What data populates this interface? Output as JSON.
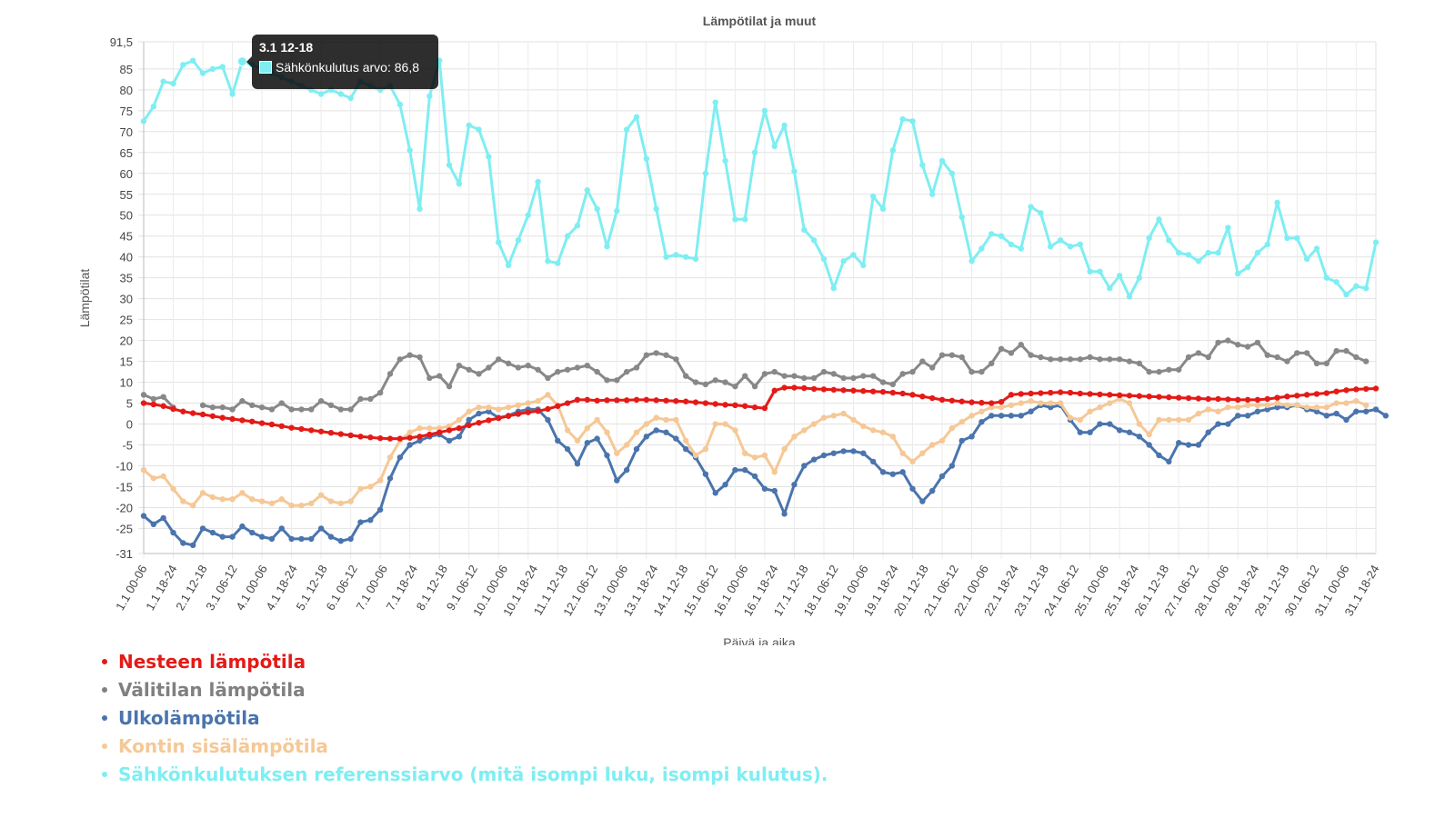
{
  "chart_data": {
    "type": "line",
    "title": "Lämpötilat ja muut",
    "xlabel": "Päivä ja aika",
    "ylabel": "Lämpötilat",
    "ylim": [
      -31,
      91.5
    ],
    "y_ticks": [
      "91,5",
      "85",
      "80",
      "75",
      "70",
      "65",
      "60",
      "55",
      "50",
      "45",
      "40",
      "35",
      "30",
      "25",
      "20",
      "15",
      "10",
      "5",
      "0",
      "-5",
      "-10",
      "-15",
      "-20",
      "-25",
      "-31"
    ],
    "y_tick_values": [
      91.5,
      85,
      80,
      75,
      70,
      65,
      60,
      55,
      50,
      45,
      40,
      35,
      30,
      25,
      20,
      15,
      10,
      5,
      0,
      -5,
      -10,
      -15,
      -20,
      -25,
      -31
    ],
    "grid": true,
    "legend_position": "bottom-left",
    "x_tick_labels": [
      "1.1 00-06",
      "1.1 18-24",
      "2.1 12-18",
      "3.1 06-12",
      "4.1 00-06",
      "4.1 18-24",
      "5.1 12-18",
      "6.1 06-12",
      "7.1 00-06",
      "7.1 18-24",
      "8.1 12-18",
      "9.1 06-12",
      "10.1 00-06",
      "10.1 18-24",
      "11.1 12-18",
      "12.1 06-12",
      "13.1 00-06",
      "13.1 18-24",
      "14.1 12-18",
      "15.1 06-12",
      "16.1 00-06",
      "16.1 18-24",
      "17.1 12-18",
      "18.1 06-12",
      "19.1 00-06",
      "19.1 18-24",
      "20.1 12-18",
      "21.1 06-12",
      "22.1 00-06",
      "22.1 18-24",
      "23.1 12-18",
      "24.1 06-12",
      "25.1 00-06",
      "25.1 18-24",
      "26.1 12-18",
      "27.1 06-12",
      "28.1 00-06",
      "28.1 18-24",
      "29.1 12-18",
      "30.1 06-12",
      "31.1 00-06",
      "31.1 18-24"
    ],
    "series": [
      {
        "name": "Sähkönkulutuksen referenssiarvo (mitä isompi luku, isompi kulutus).",
        "color": "#7eeef2",
        "values": [
          72.5,
          76,
          82,
          81.5,
          86,
          87,
          84,
          85,
          85.5,
          79,
          86.8,
          86,
          85,
          84,
          83,
          82,
          81,
          80,
          79,
          80,
          79,
          78,
          82,
          81,
          80,
          81,
          76.5,
          65.5,
          51.5,
          78.5,
          87,
          62,
          57.5,
          71.5,
          70.5,
          64,
          43.5,
          38,
          44,
          50,
          58,
          39,
          38.5,
          45,
          47.5,
          56,
          51.5,
          42.5,
          51,
          70.5,
          73.5,
          63.5,
          51.5,
          40,
          40.5,
          40,
          39.5,
          60,
          77,
          63,
          49,
          49,
          65,
          75,
          66.5,
          71.5,
          60.5,
          46.5,
          44,
          39.5,
          32.5,
          39,
          40.5,
          38,
          54.5,
          51.5,
          65.5,
          73,
          72.5,
          62,
          55,
          63,
          60,
          49.5,
          39,
          42,
          45.5,
          45,
          43,
          42,
          52,
          50.5,
          42.5,
          44,
          42.5,
          43,
          36.5,
          36.5,
          32.5,
          35.5,
          30.5,
          35,
          44.5,
          49,
          44,
          41,
          40.5,
          39,
          41,
          41,
          47,
          36,
          37.5,
          41,
          43,
          53,
          44.5,
          44.5,
          39.5,
          42,
          35,
          34,
          31,
          33,
          32.5,
          43.5
        ]
      },
      {
        "name": "Välitilan lämpötila",
        "color": "#888888",
        "values": [
          7,
          6,
          6.5,
          4,
          null,
          null,
          4.5,
          4,
          4,
          3.5,
          5.5,
          4.5,
          4,
          3.5,
          5,
          3.5,
          3.5,
          3.5,
          5.5,
          4.5,
          3.5,
          3.5,
          6,
          6,
          7.5,
          12,
          15.5,
          16.5,
          16,
          11,
          11.5,
          9,
          14,
          13,
          12,
          13.5,
          15.5,
          14.5,
          13.5,
          14,
          13,
          11,
          12.5,
          13,
          13.5,
          14,
          12.5,
          10.5,
          10.5,
          12.5,
          13.5,
          16.5,
          17,
          16.5,
          15.5,
          11.5,
          10,
          9.5,
          10.5,
          10,
          9,
          11.5,
          9,
          12,
          12.5,
          11.5,
          11.5,
          11,
          11,
          12.5,
          12,
          11,
          11,
          11.5,
          11.5,
          10,
          9.5,
          12,
          12.5,
          15,
          13.5,
          16.5,
          16.5,
          16,
          12.5,
          12.5,
          14.5,
          18,
          17,
          19,
          16.5,
          16,
          15.5,
          15.5,
          15.5,
          15.5,
          16,
          15.5,
          15.5,
          15.5,
          15,
          14.5,
          12.5,
          12.5,
          13,
          13,
          16,
          17,
          16,
          19.5,
          20,
          19,
          18.5,
          19.5,
          16.5,
          16,
          15,
          17,
          17,
          14.5,
          14.5,
          17.5,
          17.5,
          16,
          15
        ]
      },
      {
        "name": "Ulkolämpötila",
        "color": "#4a74ad",
        "values": [
          -22,
          -24,
          -22.5,
          -26,
          -28.5,
          -29,
          -25,
          -26,
          -27,
          -27,
          -24.5,
          -26,
          -27,
          -27.5,
          -25,
          -27.5,
          -27.5,
          -27.5,
          -25,
          -27,
          -28,
          -27.5,
          -23.5,
          -23,
          -20.5,
          -13,
          -8,
          -5,
          -4,
          -3,
          -2.5,
          -4,
          -3,
          1,
          2.5,
          3,
          1.5,
          2,
          3,
          3.5,
          3.5,
          1,
          -4,
          -6,
          -9.5,
          -4.5,
          -3.5,
          -7.5,
          -13.5,
          -11,
          -6,
          -3,
          -1.5,
          -2,
          -3.5,
          -6,
          -8,
          -12,
          -16.5,
          -14.5,
          -11,
          -11,
          -12.5,
          -15.5,
          -16,
          -21.5,
          -14.5,
          -10,
          -8.5,
          -7.5,
          -7,
          -6.5,
          -6.5,
          -7,
          -9,
          -11.5,
          -12,
          -11.5,
          -15.5,
          -18.5,
          -16,
          -12.5,
          -10,
          -4,
          -3,
          0.5,
          2,
          2,
          2,
          2,
          3,
          4.5,
          4,
          4.5,
          1,
          -2,
          -2,
          0,
          0,
          -1.5,
          -2,
          -3,
          -5,
          -7.5,
          -9,
          -4.5,
          -5,
          -5,
          -2,
          0,
          0,
          2,
          2,
          3,
          3.5,
          4,
          4,
          4.5,
          3.5,
          3,
          2,
          2.5,
          1,
          3,
          3,
          3.5,
          2
        ]
      },
      {
        "name": "Kontin sisälämpötila",
        "color": "#f5c896",
        "values": [
          -11,
          -13,
          -12.5,
          -15.5,
          -18.5,
          -19.5,
          -16.5,
          -17.5,
          -18,
          -18,
          -16.5,
          -18,
          -18.5,
          -19,
          -18,
          -19.5,
          -19.5,
          -19,
          -17,
          -18.5,
          -19,
          -18.5,
          -15.5,
          -15,
          -13.5,
          -8,
          -4,
          -2,
          -1,
          -1,
          -1,
          -0.5,
          1,
          3,
          4,
          4,
          3.5,
          4,
          4.5,
          5,
          5.5,
          7,
          4.5,
          -1.5,
          -4,
          -1,
          1,
          -2,
          -7,
          -5,
          -2,
          0,
          1.5,
          1,
          1,
          -4,
          -7.5,
          -6,
          0,
          0,
          -1.5,
          -7,
          -8,
          -7.5,
          -11.5,
          -6,
          -3,
          -1.5,
          0,
          1.5,
          2,
          2.5,
          1,
          -0.5,
          -1.5,
          -2,
          -3,
          -7,
          -9,
          -7,
          -5,
          -4,
          -1,
          0.5,
          2,
          3,
          4,
          4,
          4.5,
          5,
          5.5,
          5,
          5,
          5,
          1.5,
          1,
          3,
          4,
          5,
          6,
          5,
          0,
          -2.5,
          1,
          1,
          1,
          1,
          2.5,
          3.5,
          3,
          4,
          4,
          4.5,
          4.5,
          4.5,
          5,
          4.5,
          4.5,
          4,
          4,
          4,
          5,
          5,
          5.5,
          4.5
        ]
      },
      {
        "name": "Nesteen lämpötila",
        "color": "#e41a17",
        "values": [
          5,
          4.7,
          4.3,
          3.6,
          3,
          2.6,
          2.3,
          1.9,
          1.5,
          1.2,
          0.9,
          0.6,
          0.2,
          -0.1,
          -0.5,
          -0.9,
          -1.2,
          -1.5,
          -1.8,
          -2.1,
          -2.4,
          -2.7,
          -3,
          -3.2,
          -3.4,
          -3.5,
          -3.5,
          -3.3,
          -3,
          -2.5,
          -2,
          -1.5,
          -1,
          -0.3,
          0.3,
          0.9,
          1.4,
          1.9,
          2.4,
          2.8,
          3.1,
          3.6,
          4.3,
          5,
          5.8,
          5.8,
          5.6,
          5.7,
          5.7,
          5.7,
          5.8,
          5.8,
          5.7,
          5.6,
          5.5,
          5.4,
          5.2,
          5,
          4.8,
          4.6,
          4.5,
          4.3,
          4,
          3.8,
          8,
          8.7,
          8.7,
          8.6,
          8.4,
          8.3,
          8.2,
          8.1,
          8,
          7.9,
          7.8,
          7.7,
          7.5,
          7.3,
          7,
          6.6,
          6.2,
          5.8,
          5.6,
          5.4,
          5.2,
          5.1,
          5,
          5.3,
          7,
          7.2,
          7.3,
          7.4,
          7.5,
          7.6,
          7.5,
          7.3,
          7.2,
          7.1,
          7,
          6.9,
          6.8,
          6.7,
          6.6,
          6.5,
          6.4,
          6.3,
          6.2,
          6.1,
          6,
          6,
          5.9,
          5.8,
          5.8,
          5.8,
          6,
          6.3,
          6.6,
          6.8,
          7,
          7.2,
          7.4,
          7.8,
          8.1,
          8.3,
          8.4,
          8.5
        ]
      }
    ],
    "legend": [
      {
        "label": "Nesteen lämpötila",
        "color": "#e41a17"
      },
      {
        "label": "Välitilan lämpötila",
        "color": "#808080"
      },
      {
        "label": "Ulkolämpötila",
        "color": "#4a74ad"
      },
      {
        "label": "Kontin sisälämpötila",
        "color": "#f5c896"
      },
      {
        "label": "Sähkönkulutuksen referenssiarvo (mitä isompi luku, isompi kulutus).",
        "color": "#7eeef2"
      }
    ],
    "tooltip": {
      "title": "3.1 12-18",
      "label": "Sähkönkulutus arvo: 86,8",
      "color": "#7eeef2",
      "point_index": 10,
      "series_index": 0
    }
  }
}
